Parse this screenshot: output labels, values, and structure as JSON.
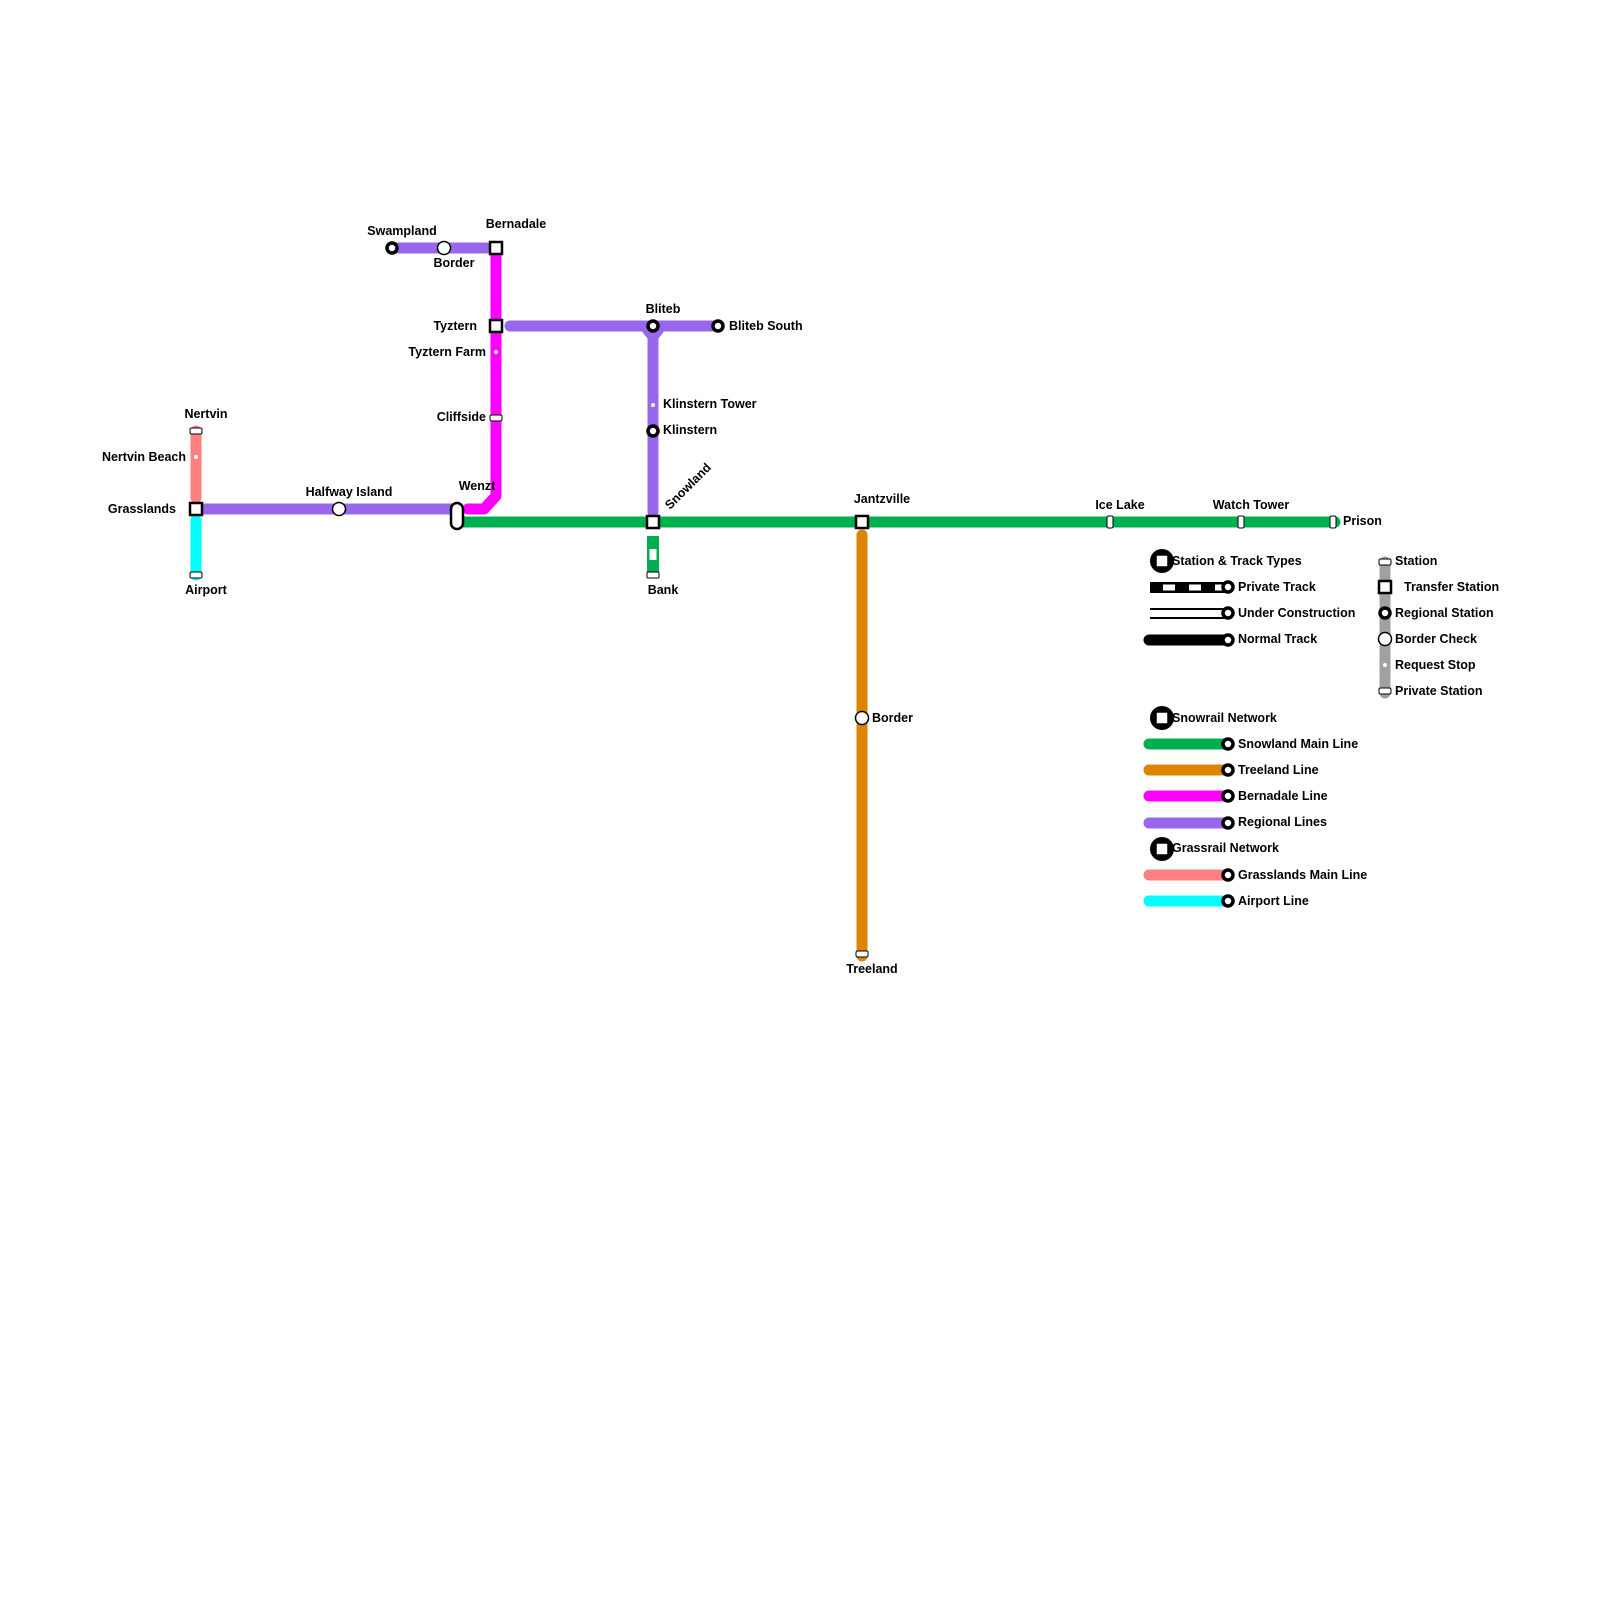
{
  "colors": {
    "snowland_main": "#00b050",
    "treeland": "#dd8500",
    "bernadale": "#ff00ff",
    "regional": "#9966ee",
    "grasslands_main": "#ff8080",
    "airport": "#00ffff",
    "legend_bar": "#a0a0a0"
  },
  "stations": {
    "swampland": "Swampland",
    "border_north": "Border",
    "bernadale": "Bernadale",
    "tyztern": "Tyztern",
    "tyztern_farm": "Tyztern Farm",
    "cliffside": "Cliffside",
    "wenzt": "Wenzt",
    "nertvin": "Nertvin",
    "nertvin_beach": "Nertvin Beach",
    "grasslands": "Grasslands",
    "halfway_island": "Halfway Island",
    "airport": "Airport",
    "bliteb": "Bliteb",
    "bliteb_south": "Bliteb South",
    "klinstern_tower": "Klinstern Tower",
    "klinstern": "Klinstern",
    "snowland": "Snowland",
    "bank": "Bank",
    "jantzville": "Jantzville",
    "ice_lake": "Ice Lake",
    "watch_tower": "Watch Tower",
    "prison": "Prison",
    "border_south": "Border",
    "treeland": "Treeland"
  },
  "legend": {
    "track_types": {
      "title": "Station & Track Types",
      "items": [
        "Private Track",
        "Under Construction",
        "Normal Track"
      ]
    },
    "station_types": [
      "Station",
      "Transfer Station",
      "Regional Station",
      "Border Check",
      "Request Stop",
      "Private Station"
    ],
    "snowrail": {
      "title": "Snowrail Network",
      "items": [
        "Snowland Main Line",
        "Treeland Line",
        "Bernadale Line",
        "Regional Lines"
      ]
    },
    "grassrail": {
      "title": "Grassrail Network",
      "items": [
        "Grasslands Main Line",
        "Airport Line"
      ]
    }
  }
}
